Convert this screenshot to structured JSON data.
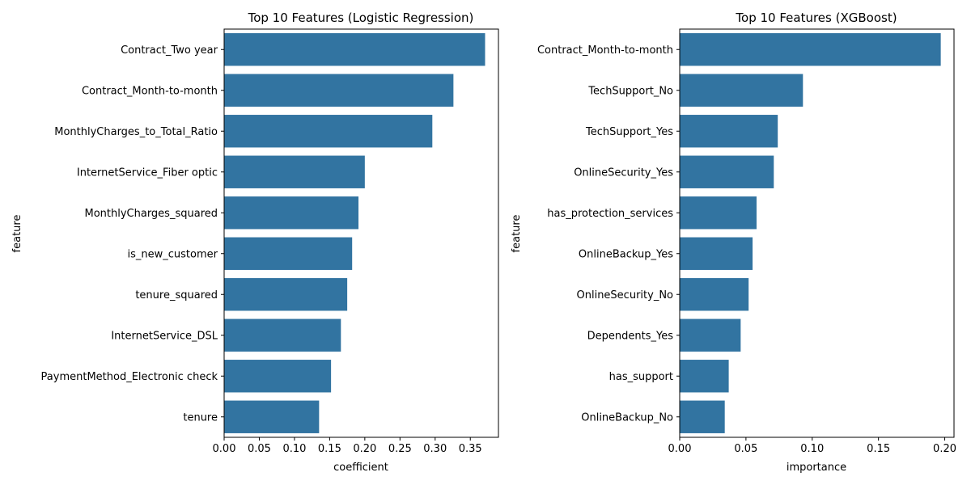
{
  "colors": {
    "bar": "#3274a1"
  },
  "chart_data": [
    {
      "type": "bar",
      "orientation": "horizontal",
      "title": "Top 10 Features (Logistic Regression)",
      "xlabel": "coefficient",
      "ylabel": "feature",
      "xlim": [
        0,
        0.39
      ],
      "xticks": [
        "0.00",
        "0.05",
        "0.10",
        "0.15",
        "0.20",
        "0.25",
        "0.30",
        "0.35"
      ],
      "grid": false,
      "categories": [
        "Contract_Two year",
        "Contract_Month-to-month",
        "MonthlyCharges_to_Total_Ratio",
        "InternetService_Fiber optic",
        "MonthlyCharges_squared",
        "is_new_customer",
        "tenure_squared",
        "InternetService_DSL",
        "PaymentMethod_Electronic check",
        "tenure"
      ],
      "values": [
        0.371,
        0.326,
        0.296,
        0.2,
        0.191,
        0.182,
        0.175,
        0.166,
        0.152,
        0.135
      ]
    },
    {
      "type": "bar",
      "orientation": "horizontal",
      "title": "Top 10 Features (XGBoost)",
      "xlabel": "importance",
      "ylabel": "feature",
      "xlim": [
        0,
        0.207
      ],
      "xticks": [
        "0.00",
        "0.05",
        "0.10",
        "0.15",
        "0.20"
      ],
      "grid": false,
      "categories": [
        "Contract_Month-to-month",
        "TechSupport_No",
        "TechSupport_Yes",
        "OnlineSecurity_Yes",
        "has_protection_services",
        "OnlineBackup_Yes",
        "OnlineSecurity_No",
        "Dependents_Yes",
        "has_support",
        "OnlineBackup_No"
      ],
      "values": [
        0.197,
        0.093,
        0.074,
        0.071,
        0.058,
        0.055,
        0.052,
        0.046,
        0.037,
        0.034
      ]
    }
  ]
}
